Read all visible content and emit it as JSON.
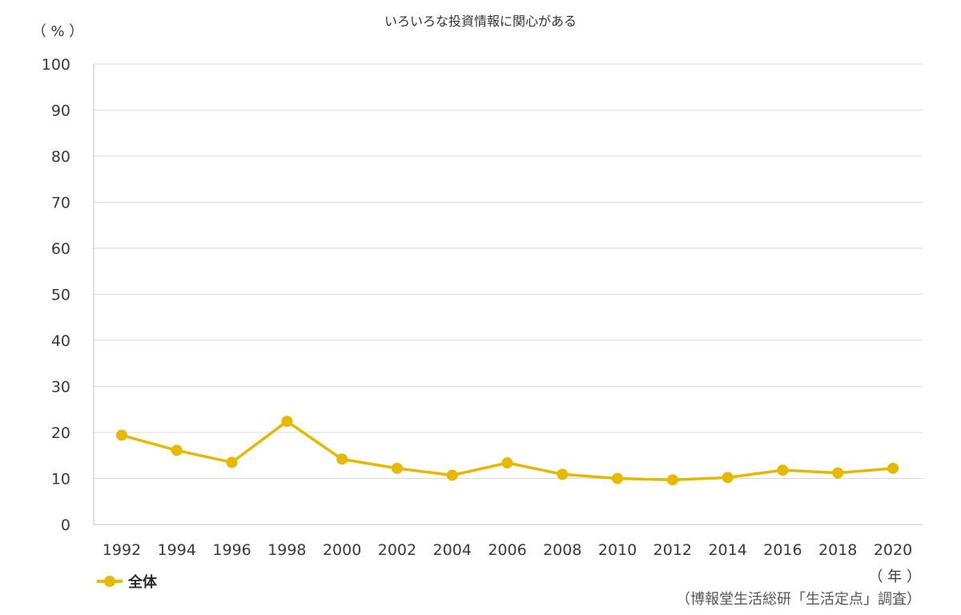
{
  "chart_data": {
    "type": "line",
    "title": "いろいろな投資情報に関心がある",
    "y_unit_label": "（ % ）",
    "x_unit_label": "（ 年 ）",
    "source": "（博報堂生活総研「生活定点」調査）",
    "ylim": [
      0,
      100
    ],
    "y_ticks": [
      0,
      10,
      20,
      30,
      40,
      50,
      60,
      70,
      80,
      90,
      100
    ],
    "x": [
      "1992",
      "1994",
      "1996",
      "1998",
      "2000",
      "2002",
      "2004",
      "2006",
      "2008",
      "2010",
      "2012",
      "2014",
      "2016",
      "2018",
      "2020"
    ],
    "series": [
      {
        "name": "全体",
        "color": "#e6b800",
        "values": [
          19.4,
          16.1,
          13.5,
          22.4,
          14.2,
          12.2,
          10.7,
          13.4,
          10.9,
          10.0,
          9.7,
          10.2,
          11.8,
          11.2,
          12.2
        ]
      }
    ],
    "grid": true,
    "legend_position": "bottom-left"
  }
}
